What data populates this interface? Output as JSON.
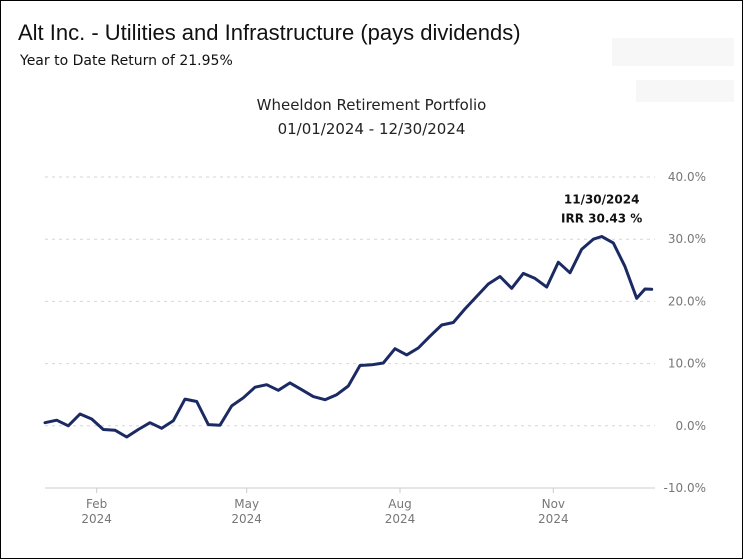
{
  "header": {
    "title": "Alt Inc. - Utilities and Infrastructure (pays dividends)",
    "subtitle": "Year to Date Return of 21.95%"
  },
  "chart_data": {
    "type": "line",
    "title": "Wheeldon Retirement Portfolio",
    "subtitle": "01/01/2024 - 12/30/2024",
    "xlabel": "",
    "ylabel": "",
    "ylim": [
      -10,
      40
    ],
    "y_ticks": [
      "40.0%",
      "30.0%",
      "20.0%",
      "10.0%",
      "0.0%",
      "-10.0%"
    ],
    "y_tick_values": [
      40,
      30,
      20,
      10,
      0,
      -10
    ],
    "x_ticks": [
      {
        "month": "Feb",
        "year": "2024",
        "date": "2024-02-01"
      },
      {
        "month": "May",
        "year": "2024",
        "date": "2024-05-01"
      },
      {
        "month": "Aug",
        "year": "2024",
        "date": "2024-08-01"
      },
      {
        "month": "Nov",
        "year": "2024",
        "date": "2024-11-01"
      }
    ],
    "grid": "horizontal dashed",
    "line_color": "#1b2a63",
    "annotation": {
      "date_label": "11/30/2024",
      "value_label": "IRR 30.43 %",
      "x": "2024-11-30",
      "y": 30.43
    },
    "series": [
      {
        "points": [
          [
            "2024-01-01",
            0.5
          ],
          [
            "2024-01-08",
            0.9
          ],
          [
            "2024-01-15",
            0.0
          ],
          [
            "2024-01-22",
            1.9
          ],
          [
            "2024-01-29",
            1.1
          ],
          [
            "2024-02-05",
            -0.6
          ],
          [
            "2024-02-12",
            -0.7
          ],
          [
            "2024-02-19",
            -1.8
          ],
          [
            "2024-02-26",
            -0.6
          ],
          [
            "2024-03-04",
            0.5
          ],
          [
            "2024-03-11",
            -0.4
          ],
          [
            "2024-03-18",
            0.8
          ],
          [
            "2024-03-25",
            4.3
          ],
          [
            "2024-04-01",
            3.9
          ],
          [
            "2024-04-08",
            0.2
          ],
          [
            "2024-04-15",
            0.1
          ],
          [
            "2024-04-22",
            3.2
          ],
          [
            "2024-04-29",
            4.5
          ],
          [
            "2024-05-06",
            6.2
          ],
          [
            "2024-05-13",
            6.6
          ],
          [
            "2024-05-20",
            5.7
          ],
          [
            "2024-05-27",
            6.9
          ],
          [
            "2024-06-03",
            5.8
          ],
          [
            "2024-06-10",
            4.7
          ],
          [
            "2024-06-17",
            4.2
          ],
          [
            "2024-06-24",
            5.0
          ],
          [
            "2024-07-01",
            6.4
          ],
          [
            "2024-07-08",
            9.7
          ],
          [
            "2024-07-15",
            9.8
          ],
          [
            "2024-07-22",
            10.1
          ],
          [
            "2024-07-29",
            12.4
          ],
          [
            "2024-08-05",
            11.4
          ],
          [
            "2024-08-12",
            12.5
          ],
          [
            "2024-08-19",
            14.4
          ],
          [
            "2024-08-26",
            16.2
          ],
          [
            "2024-09-02",
            16.6
          ],
          [
            "2024-09-09",
            18.8
          ],
          [
            "2024-09-16",
            20.8
          ],
          [
            "2024-09-23",
            22.8
          ],
          [
            "2024-09-30",
            24.0
          ],
          [
            "2024-10-07",
            22.1
          ],
          [
            "2024-10-14",
            24.5
          ],
          [
            "2024-10-21",
            23.7
          ],
          [
            "2024-10-28",
            22.3
          ],
          [
            "2024-11-04",
            26.3
          ],
          [
            "2024-11-11",
            24.6
          ],
          [
            "2024-11-18",
            28.4
          ],
          [
            "2024-11-25",
            30.0
          ],
          [
            "2024-11-30",
            30.43
          ],
          [
            "2024-12-07",
            29.4
          ],
          [
            "2024-12-14",
            25.6
          ],
          [
            "2024-12-21",
            20.5
          ],
          [
            "2024-12-26",
            22.0
          ],
          [
            "2024-12-30",
            21.95
          ]
        ]
      }
    ]
  }
}
